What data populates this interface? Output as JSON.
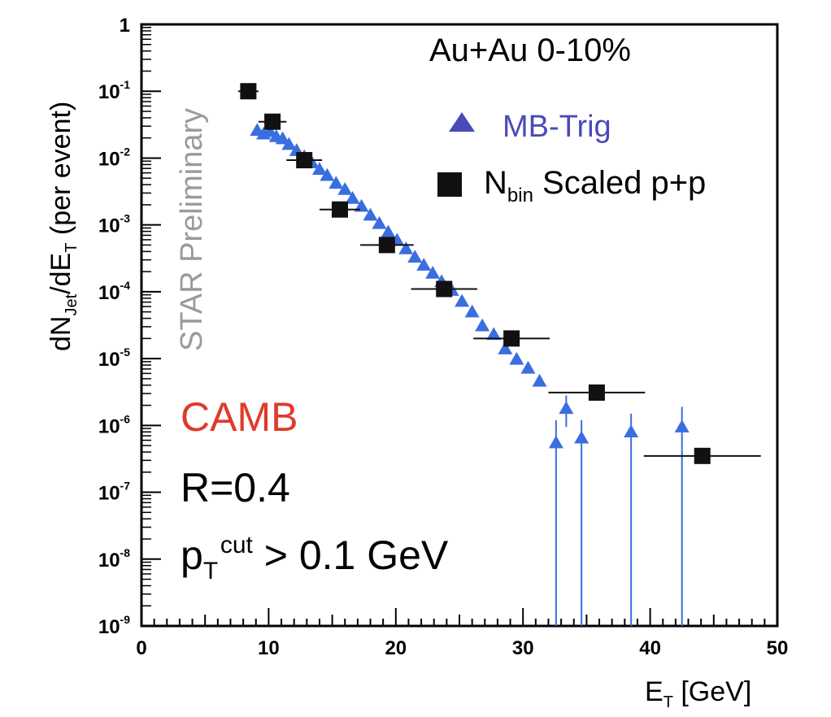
{
  "colors": {
    "mb": "#3a6ee0",
    "mb_legend": "#4a4ab8",
    "pp": "#111111",
    "camb": "#e03a2a",
    "prelim": "#9a9a9a"
  },
  "chart_data": {
    "type": "scatter",
    "yscale": "log",
    "xlim": [
      0,
      50
    ],
    "ylim_exp": [
      -9,
      0
    ],
    "xticks": [
      "0",
      "10",
      "20",
      "30",
      "40",
      "50"
    ],
    "yticks": [
      {
        "base": "10",
        "exp": "-9"
      },
      {
        "base": "10",
        "exp": "-8"
      },
      {
        "base": "10",
        "exp": "-7"
      },
      {
        "base": "10",
        "exp": "-6"
      },
      {
        "base": "10",
        "exp": "-5"
      },
      {
        "base": "10",
        "exp": "-4"
      },
      {
        "base": "10",
        "exp": "-3"
      },
      {
        "base": "10",
        "exp": "-2"
      },
      {
        "base": "10",
        "exp": "-1"
      },
      {
        "base": "1",
        "exp": ""
      }
    ],
    "ylabel": {
      "main1": "dN",
      "sub1": "Jet",
      "main2": "/dE",
      "sub2": "T",
      "rest": " (per event)"
    },
    "xlabel": {
      "main": "E",
      "sub": "T",
      "rest": " [GeV]"
    },
    "watermark": "STAR Preliminary",
    "title": "Au+Au 0-10%",
    "legend": {
      "mb": "MB-Trig",
      "pp_main": "N",
      "pp_sub": "bin",
      "pp_rest": " Scaled p+p"
    },
    "annotations": {
      "camb": "CAMB",
      "radius": "R=0.4",
      "pt_main": "p",
      "pt_sub": "T",
      "pt_sup": "cut",
      "pt_rest": " > 0.1 GeV"
    },
    "series": [
      {
        "name": "MB-Trig",
        "marker": "triangle",
        "points": [
          {
            "x": 9.1,
            "y": 0.026
          },
          {
            "x": 9.6,
            "y": 0.023
          },
          {
            "x": 10.1,
            "y": 0.025
          },
          {
            "x": 10.6,
            "y": 0.021
          },
          {
            "x": 11.1,
            "y": 0.0195
          },
          {
            "x": 11.6,
            "y": 0.016
          },
          {
            "x": 12.2,
            "y": 0.013
          },
          {
            "x": 12.8,
            "y": 0.0105
          },
          {
            "x": 13.4,
            "y": 0.0085
          },
          {
            "x": 14.0,
            "y": 0.0068
          },
          {
            "x": 14.6,
            "y": 0.0055
          },
          {
            "x": 15.3,
            "y": 0.0042
          },
          {
            "x": 16.0,
            "y": 0.0034
          },
          {
            "x": 16.6,
            "y": 0.0025
          },
          {
            "x": 17.3,
            "y": 0.0019
          },
          {
            "x": 18.0,
            "y": 0.0014
          },
          {
            "x": 18.7,
            "y": 0.00105
          },
          {
            "x": 19.4,
            "y": 0.00078
          },
          {
            "x": 20.1,
            "y": 0.00059
          },
          {
            "x": 20.8,
            "y": 0.00044
          },
          {
            "x": 21.5,
            "y": 0.00033
          },
          {
            "x": 22.2,
            "y": 0.00025
          },
          {
            "x": 22.9,
            "y": 0.00019
          },
          {
            "x": 23.6,
            "y": 0.000142
          },
          {
            "x": 24.4,
            "y": 0.000105
          },
          {
            "x": 25.2,
            "y": 7.2e-05
          },
          {
            "x": 26.0,
            "y": 5e-05
          },
          {
            "x": 26.8,
            "y": 3.1e-05
          },
          {
            "x": 27.7,
            "y": 2.3e-05
          },
          {
            "x": 28.6,
            "y": 1.4e-05
          },
          {
            "x": 29.5,
            "y": 9.8e-06
          },
          {
            "x": 30.4,
            "y": 7.2e-06
          },
          {
            "x": 31.3,
            "y": 4.6e-06
          },
          {
            "x": 32.6,
            "y": 5.5e-07,
            "elo": 1e-12,
            "ehi": 1.2e-06
          },
          {
            "x": 33.4,
            "y": 1.8e-06,
            "elo": 9.5e-07,
            "ehi": 2.8e-06
          },
          {
            "x": 34.6,
            "y": 6.5e-07,
            "elo": 1e-12,
            "ehi": 1.2e-06
          },
          {
            "x": 38.5,
            "y": 8e-07,
            "elo": 1e-12,
            "ehi": 1.5e-06
          },
          {
            "x": 42.5,
            "y": 9.5e-07,
            "elo": 1e-12,
            "ehi": 1.9e-06
          }
        ]
      },
      {
        "name": "Nbin Scaled p+p",
        "marker": "square",
        "points": [
          {
            "x": 8.4,
            "y": 0.1,
            "xerr": 0.8
          },
          {
            "x": 10.3,
            "y": 0.035,
            "xerr": 1.1
          },
          {
            "x": 12.8,
            "y": 0.0093,
            "xerr": 1.4
          },
          {
            "x": 15.6,
            "y": 0.0017,
            "xerr": 1.6
          },
          {
            "x": 19.3,
            "y": 0.0005,
            "xerr": 2.1
          },
          {
            "x": 23.8,
            "y": 0.00011,
            "xerr": 2.6
          },
          {
            "x": 29.1,
            "y": 2e-05,
            "xerr": 3.0
          },
          {
            "x": 35.8,
            "y": 3.1e-06,
            "xerr": 3.8
          },
          {
            "x": 44.1,
            "y": 3.5e-07,
            "xerr": 4.6
          }
        ]
      }
    ]
  }
}
